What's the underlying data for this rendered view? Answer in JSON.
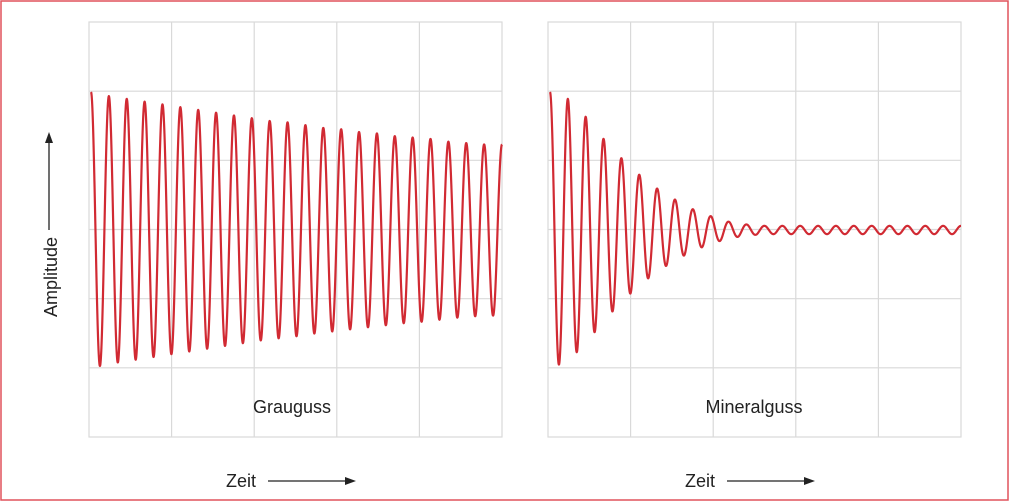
{
  "colors": {
    "border": "#e0525c",
    "grid": "#d9d9d9",
    "signal": "#d12a33",
    "text": "#222222"
  },
  "chart_data": [
    {
      "type": "line",
      "title": "Grauguss",
      "xlabel": "Zeit",
      "ylabel": "Amplitude",
      "grid": true,
      "signal": {
        "description": "slowly damped sinusoid",
        "cycles": 23,
        "peak_values": [
          1.0,
          0.97,
          0.95,
          0.93,
          0.91,
          0.89,
          0.87,
          0.85,
          0.83,
          0.81,
          0.79,
          0.78,
          0.76,
          0.74,
          0.73,
          0.71,
          0.7,
          0.68,
          0.67,
          0.66,
          0.64,
          0.63,
          0.62
        ]
      }
    },
    {
      "type": "line",
      "title": "Mineralguss",
      "xlabel": "Zeit",
      "ylabel": "",
      "grid": true,
      "signal": {
        "description": "strongly damped sinusoid settling to small residual oscillation",
        "cycles": 23,
        "peak_values": [
          1.0,
          0.95,
          0.82,
          0.66,
          0.52,
          0.4,
          0.3,
          0.22,
          0.15,
          0.1,
          0.06,
          0.04,
          0.03,
          0.03,
          0.03,
          0.03,
          0.03,
          0.03,
          0.03,
          0.03,
          0.03,
          0.03,
          0.03
        ]
      }
    }
  ]
}
